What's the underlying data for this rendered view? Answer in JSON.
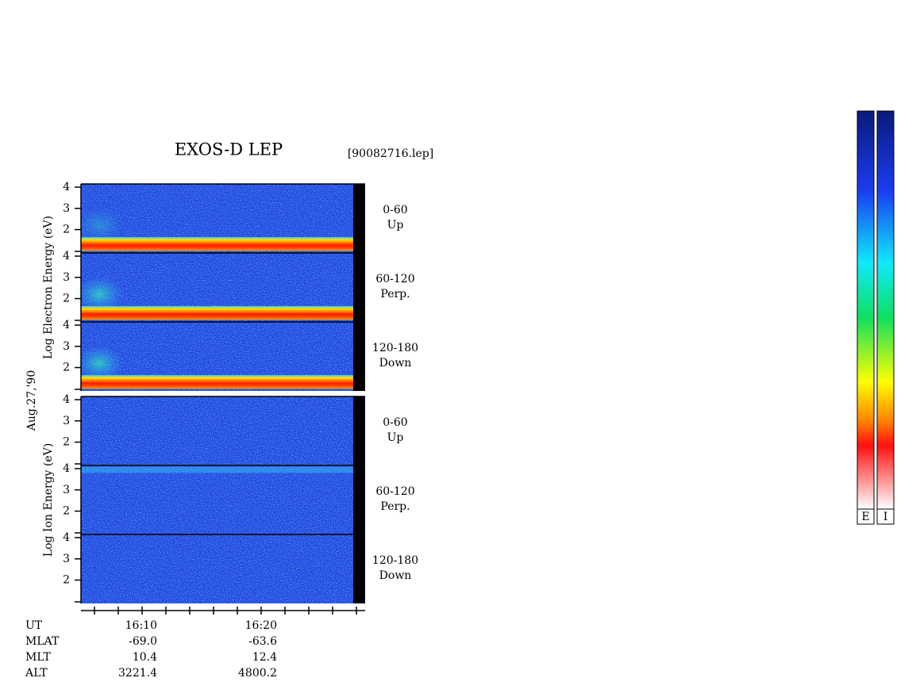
{
  "title": "EXOS-D LEP",
  "file": "[90082716.lep]",
  "date": "Aug.27,'90",
  "groups": [
    {
      "ylabel": "Log  Electron  Energy (eV)",
      "panels": [
        {
          "angle": "0-60",
          "direction": "Up",
          "ylim": [
            0.9,
            4.15
          ],
          "yticks": [
            2,
            3,
            4
          ]
        },
        {
          "angle": "60-120",
          "direction": "Perp.",
          "ylim": [
            0.9,
            4.15
          ],
          "yticks": [
            2,
            3,
            4
          ]
        },
        {
          "angle": "120-180",
          "direction": "Down",
          "ylim": [
            0.9,
            4.15
          ],
          "yticks": [
            2,
            3,
            4
          ]
        }
      ]
    },
    {
      "ylabel": "Log  Ion  Energy (eV)",
      "panels": [
        {
          "angle": "0-60",
          "direction": "Up",
          "ylim": [
            0.9,
            4.15
          ],
          "yticks": [
            2,
            3,
            4
          ]
        },
        {
          "angle": "60-120",
          "direction": "Perp.",
          "ylim": [
            0.9,
            4.15
          ],
          "yticks": [
            2,
            3,
            4
          ]
        },
        {
          "angle": "120-180",
          "direction": "Down",
          "ylim": [
            0.9,
            4.15
          ],
          "yticks": [
            2,
            3,
            4
          ]
        }
      ]
    }
  ],
  "rows": [
    {
      "name": "UT",
      "values": [
        "16:10",
        "16:20"
      ]
    },
    {
      "name": "MLAT",
      "values": [
        "-69.0",
        "-63.6"
      ]
    },
    {
      "name": "MLT",
      "values": [
        "10.4",
        "12.4"
      ]
    },
    {
      "name": "ALT",
      "values": [
        "3221.4",
        "4800.2"
      ]
    }
  ],
  "colorbars": [
    "E",
    "I"
  ]
}
